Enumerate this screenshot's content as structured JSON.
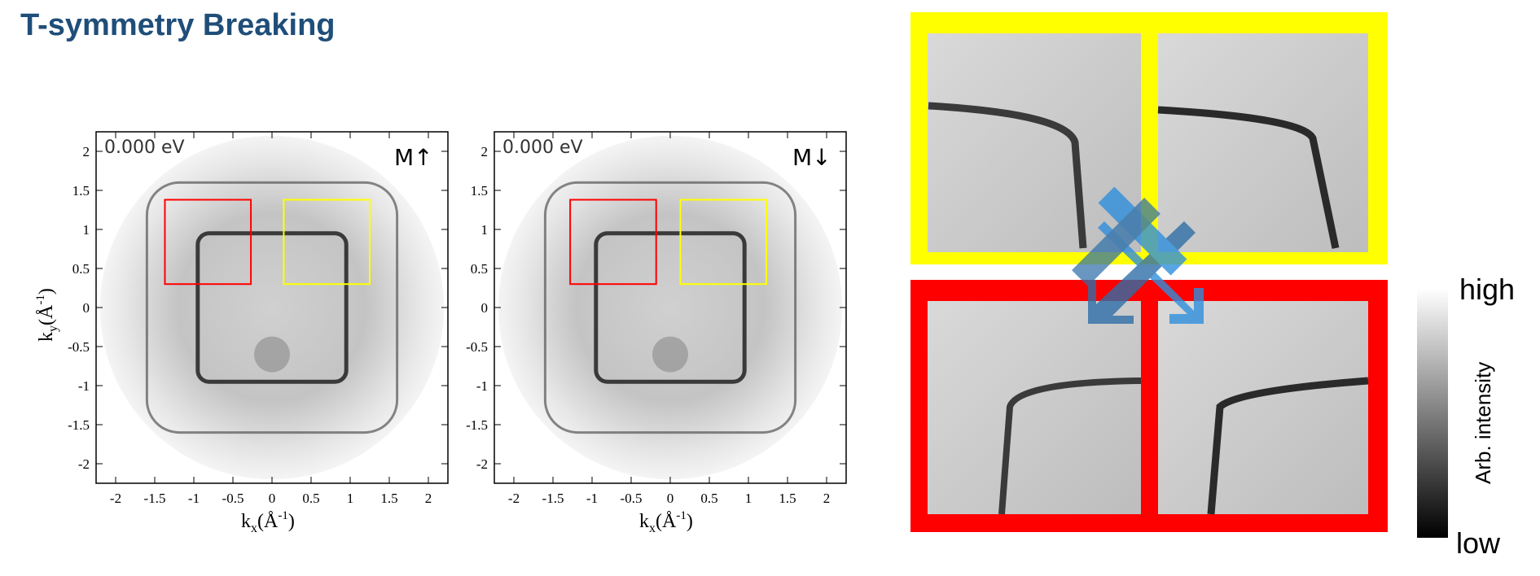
{
  "slide": {
    "title": "T-symmetry Breaking"
  },
  "panels": [
    {
      "energy_label": "0.000 eV",
      "magnetization_label": "M↑",
      "x_axis": {
        "label_main": "k",
        "label_sub": "x",
        "label_unit": "(Å",
        "label_sup": "-1",
        "label_close": ")"
      },
      "y_axis": {
        "label_main": "k",
        "label_sub": "y",
        "label_unit": "(Å",
        "label_sup": "-1",
        "label_close": ")"
      },
      "ticks": [
        "-2",
        "-1.5",
        "-1",
        "-0.5",
        "0",
        "0.5",
        "1",
        "1.5",
        "2"
      ],
      "range": [
        -2.25,
        2.25
      ],
      "boxes": [
        {
          "color": "#ff0000",
          "kx": [
            -1.37,
            -0.27
          ],
          "ky": [
            0.3,
            1.38
          ]
        },
        {
          "color": "#ffff00",
          "kx": [
            0.15,
            1.25
          ],
          "ky": [
            0.3,
            1.38
          ]
        }
      ]
    },
    {
      "energy_label": "0.000 eV",
      "magnetization_label": "M↓",
      "x_axis": {
        "label_main": "k",
        "label_sub": "x",
        "label_unit": "(Å",
        "label_sup": "-1",
        "label_close": ")"
      },
      "ticks": [
        "-2",
        "-1.5",
        "-1",
        "-0.5",
        "0",
        "0.5",
        "1",
        "1.5",
        "2"
      ],
      "range": [
        -2.25,
        2.25
      ],
      "boxes": [
        {
          "color": "#ff0000",
          "kx": [
            -1.28,
            -0.18
          ],
          "ky": [
            0.3,
            1.38
          ]
        },
        {
          "color": "#ffff00",
          "kx": [
            0.13,
            1.23
          ],
          "ky": [
            0.3,
            1.38
          ]
        }
      ]
    }
  ],
  "zoom": {
    "top_frame_color": "#ffff00",
    "bottom_frame_color": "#ff0000",
    "arrow_color": "#2f8fdd"
  },
  "colorbar": {
    "high_label": "high",
    "low_label": "low",
    "axis_label": "Arb. intensity"
  },
  "colors": {
    "title": "#1f4e79"
  }
}
